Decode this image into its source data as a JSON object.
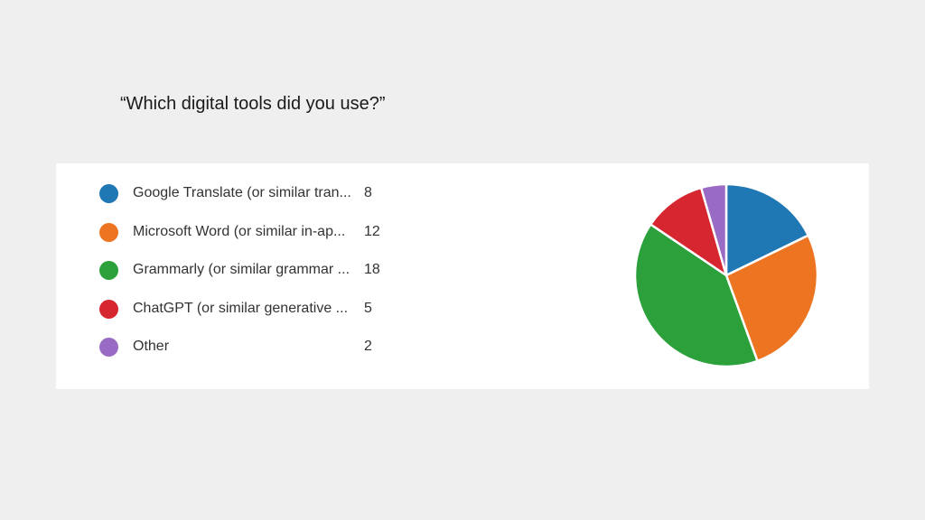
{
  "slide": {
    "title": "“Which digital tools did you use?”"
  },
  "chart_data": {
    "type": "pie",
    "title": "",
    "legend_position": "left",
    "categories": [
      "Google Translate (or similar tran...",
      "Microsoft Word (or similar in-ap...",
      "Grammarly (or similar grammar ...",
      "ChatGPT (or similar generative ...",
      "Other"
    ],
    "values": [
      8,
      12,
      18,
      5,
      2
    ],
    "colors": [
      "#1f77b4",
      "#ed7522",
      "#2ca13b",
      "#d62630",
      "#9a6bc4"
    ]
  }
}
